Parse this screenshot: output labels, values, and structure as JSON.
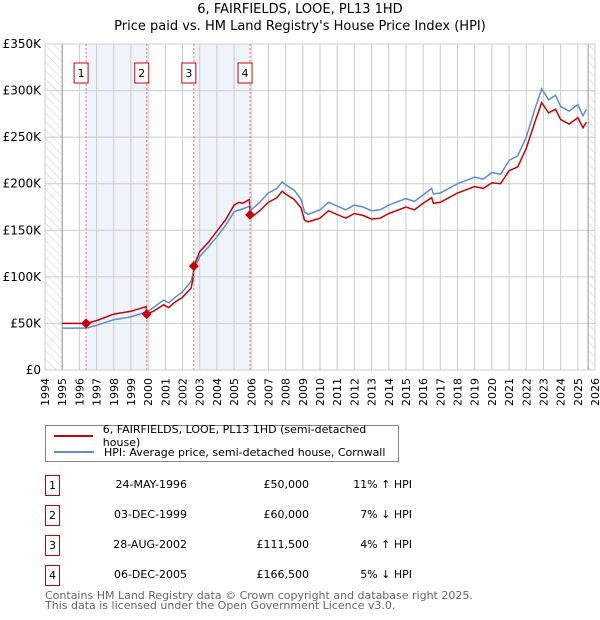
{
  "title": "6, FAIRFIELDS, LOOE, PL13 1HD",
  "subtitle": "Price paid vs. HM Land Registry's House Price Index (HPI)",
  "chart_data": {
    "type": "line",
    "title": "6, FAIRFIELDS, LOOE, PL13 1HD",
    "subtitle": "Price paid vs. HM Land Registry's House Price Index (HPI)",
    "xlim": [
      1994,
      2026
    ],
    "ylim": [
      0,
      350000
    ],
    "x_ticks": [
      "1994",
      "1995",
      "1996",
      "1997",
      "1998",
      "1999",
      "2000",
      "2001",
      "2002",
      "2003",
      "2004",
      "2005",
      "2006",
      "2007",
      "2008",
      "2009",
      "2010",
      "2011",
      "2012",
      "2013",
      "2014",
      "2015",
      "2016",
      "2017",
      "2018",
      "2019",
      "2020",
      "2021",
      "2022",
      "2023",
      "2024",
      "2025",
      "2026"
    ],
    "y_ticks": [
      {
        "v": 0,
        "label": "£0"
      },
      {
        "v": 50000,
        "label": "£50K"
      },
      {
        "v": 100000,
        "label": "£100K"
      },
      {
        "v": 150000,
        "label": "£150K"
      },
      {
        "v": 200000,
        "label": "£200K"
      },
      {
        "v": 250000,
        "label": "£250K"
      },
      {
        "v": 300000,
        "label": "£300K"
      },
      {
        "v": 350000,
        "label": "£350K"
      }
    ],
    "grid": true,
    "hatched_ranges": [
      [
        1994,
        1995
      ],
      [
        2025.6,
        2026
      ]
    ],
    "shaded_ranges": [
      [
        1996.39,
        1999.92
      ],
      [
        2002.66,
        2005.93
      ]
    ],
    "series": [
      {
        "name": "6, FAIRFIELDS, LOOE, PL13 1HD (semi-detached house)",
        "color": "#cc0000",
        "points": [
          [
            1995,
            50
          ],
          [
            1996,
            50
          ],
          [
            1996.39,
            50
          ],
          [
            1997,
            53
          ],
          [
            1998,
            60
          ],
          [
            1999,
            63
          ],
          [
            1999.88,
            68
          ],
          [
            1999.92,
            60
          ],
          [
            2000.3,
            63
          ],
          [
            2000.9,
            70
          ],
          [
            2001.2,
            67
          ],
          [
            2001.5,
            72
          ],
          [
            2002,
            78
          ],
          [
            2002.5,
            88
          ],
          [
            2002.64,
            100
          ],
          [
            2002.66,
            111.5
          ],
          [
            2003,
            127
          ],
          [
            2003.5,
            137
          ],
          [
            2004,
            149
          ],
          [
            2004.5,
            161
          ],
          [
            2005,
            177
          ],
          [
            2005.3,
            180
          ],
          [
            2005.5,
            179
          ],
          [
            2005.9,
            183
          ],
          [
            2005.93,
            166.5
          ],
          [
            2006,
            164
          ],
          [
            2006.5,
            171
          ],
          [
            2007,
            180
          ],
          [
            2007.5,
            185
          ],
          [
            2007.8,
            192
          ],
          [
            2008,
            189
          ],
          [
            2008.5,
            183
          ],
          [
            2008.9,
            174
          ],
          [
            2009.1,
            161
          ],
          [
            2009.3,
            159
          ],
          [
            2010,
            163
          ],
          [
            2010.5,
            171
          ],
          [
            2011,
            167
          ],
          [
            2011.5,
            163
          ],
          [
            2012,
            168
          ],
          [
            2012.5,
            166
          ],
          [
            2013,
            162
          ],
          [
            2013.5,
            163
          ],
          [
            2014,
            168
          ],
          [
            2015,
            175
          ],
          [
            2015.5,
            172
          ],
          [
            2016,
            179
          ],
          [
            2016.5,
            185
          ],
          [
            2016.6,
            179
          ],
          [
            2017,
            180
          ],
          [
            2017.5,
            185
          ],
          [
            2018,
            190
          ],
          [
            2019,
            197
          ],
          [
            2019.5,
            195
          ],
          [
            2020,
            201
          ],
          [
            2020.5,
            200
          ],
          [
            2021,
            214
          ],
          [
            2021.5,
            218
          ],
          [
            2022,
            238
          ],
          [
            2022.5,
            266
          ],
          [
            2022.9,
            287
          ],
          [
            2023.3,
            276
          ],
          [
            2023.7,
            280
          ],
          [
            2024,
            269
          ],
          [
            2024.5,
            264
          ],
          [
            2025,
            271
          ],
          [
            2025.3,
            260
          ],
          [
            2025.5,
            266
          ]
        ]
      },
      {
        "name": "HPI: Average price, semi-detached house, Cornwall",
        "color": "#5b8dd0",
        "points": [
          [
            1995,
            45
          ],
          [
            1996,
            45
          ],
          [
            1996.4,
            45
          ],
          [
            1997,
            48
          ],
          [
            1998,
            54
          ],
          [
            1999,
            57
          ],
          [
            2000,
            63
          ],
          [
            2000.9,
            75
          ],
          [
            2001.2,
            72
          ],
          [
            2001.5,
            77
          ],
          [
            2002,
            84
          ],
          [
            2002.5,
            95
          ],
          [
            2002.66,
            107
          ],
          [
            2003,
            122
          ],
          [
            2003.5,
            132
          ],
          [
            2004,
            143
          ],
          [
            2004.5,
            155
          ],
          [
            2005,
            170
          ],
          [
            2005.5,
            173
          ],
          [
            2005.93,
            176
          ],
          [
            2006,
            172
          ],
          [
            2006.5,
            180
          ],
          [
            2007,
            190
          ],
          [
            2007.5,
            195
          ],
          [
            2007.8,
            202
          ],
          [
            2008,
            199
          ],
          [
            2008.5,
            193
          ],
          [
            2008.9,
            183
          ],
          [
            2009.1,
            170
          ],
          [
            2009.3,
            167
          ],
          [
            2010,
            172
          ],
          [
            2010.5,
            180
          ],
          [
            2011,
            176
          ],
          [
            2011.5,
            172
          ],
          [
            2012,
            177
          ],
          [
            2012.5,
            175
          ],
          [
            2013,
            171
          ],
          [
            2013.5,
            172
          ],
          [
            2014,
            177
          ],
          [
            2015,
            184
          ],
          [
            2015.5,
            181
          ],
          [
            2016,
            188
          ],
          [
            2016.5,
            195
          ],
          [
            2016.6,
            189
          ],
          [
            2017,
            190
          ],
          [
            2017.5,
            195
          ],
          [
            2018,
            200
          ],
          [
            2019,
            207
          ],
          [
            2019.5,
            205
          ],
          [
            2020,
            212
          ],
          [
            2020.5,
            210
          ],
          [
            2021,
            225
          ],
          [
            2021.5,
            230
          ],
          [
            2022,
            250
          ],
          [
            2022.5,
            280
          ],
          [
            2022.9,
            302
          ],
          [
            2023.3,
            290
          ],
          [
            2023.7,
            295
          ],
          [
            2024,
            283
          ],
          [
            2024.5,
            278
          ],
          [
            2025,
            285
          ],
          [
            2025.3,
            273
          ],
          [
            2025.5,
            280
          ]
        ]
      }
    ],
    "units_note": "series values in £ thousands",
    "sales": [
      {
        "n": "1",
        "x": 1996.39,
        "price": 50
      },
      {
        "n": "2",
        "x": 1999.92,
        "price": 60
      },
      {
        "n": "3",
        "x": 2002.66,
        "price": 111.5
      },
      {
        "n": "4",
        "x": 2005.93,
        "price": 166.5
      }
    ]
  },
  "legend": [
    {
      "label": "6, FAIRFIELDS, LOOE, PL13 1HD (semi-detached house)",
      "color": "#cc0000"
    },
    {
      "label": "HPI: Average price, semi-detached house, Cornwall",
      "color": "#5b8dd0"
    }
  ],
  "transactions": [
    {
      "n": "1",
      "date": "24-MAY-1996",
      "price": "£50,000",
      "hpi": "11% ↑ HPI"
    },
    {
      "n": "2",
      "date": "03-DEC-1999",
      "price": "£60,000",
      "hpi": "7% ↓ HPI"
    },
    {
      "n": "3",
      "date": "28-AUG-2002",
      "price": "£111,500",
      "hpi": "4% ↑ HPI"
    },
    {
      "n": "4",
      "date": "06-DEC-2005",
      "price": "£166,500",
      "hpi": "5% ↓ HPI"
    }
  ],
  "footer": [
    "Contains HM Land Registry data © Crown copyright and database right 2025.",
    "This data is licensed under the Open Government Licence v3.0."
  ]
}
